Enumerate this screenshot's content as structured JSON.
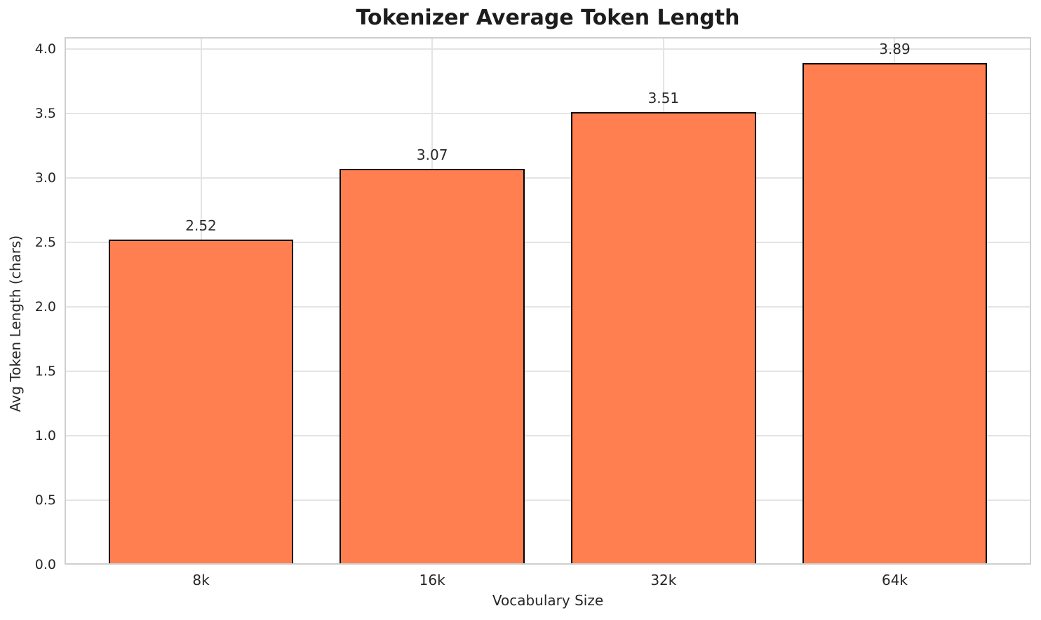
{
  "chart_data": {
    "type": "bar",
    "title": "Tokenizer Average Token Length",
    "xlabel": "Vocabulary Size",
    "ylabel": "Avg Token Length (chars)",
    "categories": [
      "8k",
      "16k",
      "32k",
      "64k"
    ],
    "values": [
      2.52,
      3.07,
      3.51,
      3.89
    ],
    "bar_labels": [
      "2.52",
      "3.07",
      "3.51",
      "3.89"
    ],
    "yticks": [
      0.0,
      0.5,
      1.0,
      1.5,
      2.0,
      2.5,
      3.0,
      3.5,
      4.0
    ],
    "ytick_labels": [
      "0.0",
      "0.5",
      "1.0",
      "1.5",
      "2.0",
      "2.5",
      "3.0",
      "3.5",
      "4.0"
    ],
    "ylim": [
      0,
      4.09
    ],
    "xlim": [
      -0.59,
      3.59
    ],
    "bar_width": 0.8,
    "grid": true,
    "legend_position": "none",
    "colors": {
      "bar_fill": "#FF7F50",
      "bar_edge": "#000000",
      "grid": "#e4e4e4",
      "spine": "#cfcfcf",
      "tick_text": "#262626",
      "value_text": "#2a2a2a",
      "title_text": "#1c1c1c",
      "background": "#ffffff"
    }
  }
}
